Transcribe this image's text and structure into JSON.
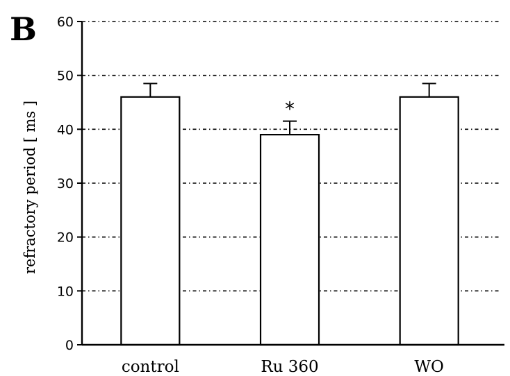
{
  "panel_label": "B",
  "chart_data": {
    "type": "bar",
    "title": "",
    "xlabel": "",
    "ylabel": "refractory period [ ms ]",
    "categories": [
      "control",
      "Ru 360",
      "WO"
    ],
    "values": [
      46,
      39,
      46
    ],
    "errors": [
      2.5,
      2.5,
      2.5
    ],
    "annotations": [
      "",
      "*",
      ""
    ],
    "ylim": [
      0,
      60
    ],
    "yticks": [
      0,
      10,
      20,
      30,
      40,
      50,
      60
    ],
    "grid": true,
    "bar_color": "#ffffff",
    "edge_color": "#000000"
  }
}
